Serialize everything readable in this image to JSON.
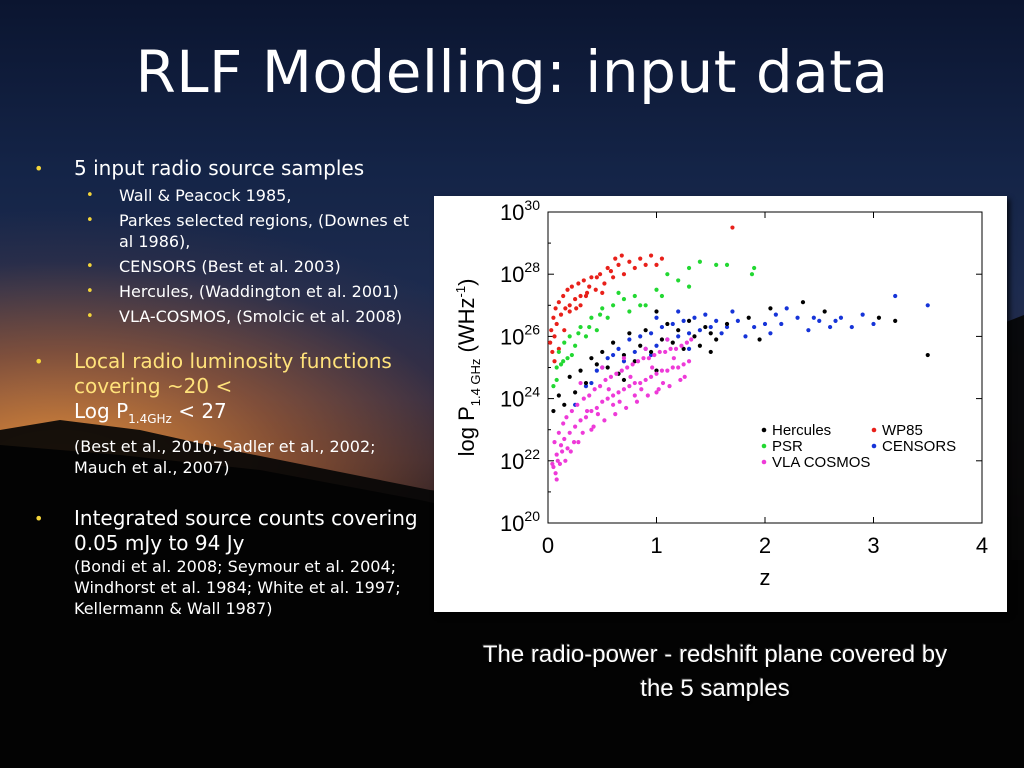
{
  "title": "RLF Modelling: input data",
  "bullets": {
    "b1": {
      "text": "5 input radio source samples",
      "subs": [
        "Wall & Peacock 1985,",
        "Parkes selected regions, (Downes et al 1986),",
        "CENSORS (Best et al. 2003)",
        "Hercules, (Waddington et al. 2001)",
        "VLA-COSMOS, (Smolcic et al. 2008)"
      ]
    },
    "b2": {
      "line1": "Local radio luminosity functions covering ~20 <",
      "logp": "Log P",
      "logp_sub": "1.4GHz",
      "logp_tail": " < 27",
      "refs": "(Best et al., 2010; Sadler et al., 2002; Mauch et al., 2007)"
    },
    "b3": {
      "line1": "Integrated source counts covering 0.05 mJy to 94 Jy",
      "refs": "(Bondi et al. 2008; Seymour et al. 2004; Windhorst et al. 1984; White et al. 1997; Kellermann & Wall 1987)"
    }
  },
  "caption": "The radio-power - redshift plane covered by the 5 samples",
  "colors": {
    "bullet_dot": "#f3d43a",
    "Hercules": "#000000",
    "WP85": "#e8201a",
    "PSR": "#22d832",
    "CENSORS": "#1634d8",
    "VLA COSMOS": "#ee3ad8"
  },
  "chart_data": {
    "type": "scatter",
    "xlabel": "z",
    "ylabel_base": "log P",
    "ylabel_sub": "1.4 GHz",
    "ylabel_unit": "(WHz",
    "ylabel_unit_sup": "-1",
    "ylabel_unit_close": ")",
    "xlim": [
      0,
      4
    ],
    "ylim": [
      20,
      30
    ],
    "y_scale": "log",
    "x_ticks": [
      {
        "v": 0,
        "label": "0"
      },
      {
        "v": 1,
        "label": "1"
      },
      {
        "v": 2,
        "label": "2"
      },
      {
        "v": 3,
        "label": "3"
      },
      {
        "v": 4,
        "label": "4"
      }
    ],
    "y_ticks": [
      {
        "v": 20,
        "base": "10",
        "exp": "20"
      },
      {
        "v": 22,
        "base": "10",
        "exp": "22"
      },
      {
        "v": 24,
        "base": "10",
        "exp": "24"
      },
      {
        "v": 26,
        "base": "10",
        "exp": "26"
      },
      {
        "v": 28,
        "base": "10",
        "exp": "28"
      },
      {
        "v": 30,
        "base": "10",
        "exp": "30"
      }
    ],
    "legend_placement": "lower-right",
    "legend": [
      {
        "name": "Hercules",
        "color": "#000000"
      },
      {
        "name": "WP85",
        "color": "#e8201a"
      },
      {
        "name": "PSR",
        "color": "#22d832"
      },
      {
        "name": "CENSORS",
        "color": "#1634d8"
      },
      {
        "name": "VLA COSMOS",
        "color": "#ee3ad8"
      }
    ],
    "series": [
      {
        "name": "WP85",
        "color": "#e8201a",
        "points": [
          [
            0.02,
            25.8
          ],
          [
            0.03,
            26.2
          ],
          [
            0.04,
            25.5
          ],
          [
            0.05,
            26.6
          ],
          [
            0.06,
            26.0
          ],
          [
            0.07,
            26.9
          ],
          [
            0.08,
            26.4
          ],
          [
            0.1,
            27.1
          ],
          [
            0.12,
            26.7
          ],
          [
            0.14,
            27.3
          ],
          [
            0.16,
            26.9
          ],
          [
            0.18,
            27.5
          ],
          [
            0.2,
            27.0
          ],
          [
            0.22,
            27.6
          ],
          [
            0.25,
            27.2
          ],
          [
            0.28,
            27.7
          ],
          [
            0.3,
            27.3
          ],
          [
            0.33,
            27.8
          ],
          [
            0.36,
            27.4
          ],
          [
            0.4,
            27.9
          ],
          [
            0.44,
            27.5
          ],
          [
            0.48,
            28.0
          ],
          [
            0.52,
            27.7
          ],
          [
            0.55,
            28.2
          ],
          [
            0.6,
            27.9
          ],
          [
            0.65,
            28.3
          ],
          [
            0.7,
            28.0
          ],
          [
            0.75,
            28.4
          ],
          [
            0.8,
            28.2
          ],
          [
            0.85,
            28.5
          ],
          [
            0.9,
            28.3
          ],
          [
            0.95,
            28.6
          ],
          [
            1.0,
            28.3
          ],
          [
            1.05,
            28.5
          ],
          [
            0.58,
            28.1
          ],
          [
            0.68,
            28.6
          ],
          [
            0.45,
            27.9
          ],
          [
            0.38,
            27.6
          ],
          [
            0.26,
            26.9
          ],
          [
            0.15,
            26.2
          ],
          [
            0.1,
            25.6
          ],
          [
            0.06,
            25.2
          ],
          [
            0.3,
            27.0
          ],
          [
            0.5,
            27.4
          ],
          [
            1.7,
            29.5
          ],
          [
            0.2,
            26.8
          ],
          [
            0.35,
            27.3
          ],
          [
            0.62,
            28.5
          ]
        ]
      },
      {
        "name": "PSR",
        "color": "#22d832",
        "points": [
          [
            0.05,
            24.4
          ],
          [
            0.08,
            25.0
          ],
          [
            0.1,
            25.5
          ],
          [
            0.12,
            25.1
          ],
          [
            0.15,
            25.8
          ],
          [
            0.18,
            25.3
          ],
          [
            0.2,
            26.0
          ],
          [
            0.25,
            25.7
          ],
          [
            0.3,
            26.3
          ],
          [
            0.35,
            26.0
          ],
          [
            0.4,
            26.6
          ],
          [
            0.45,
            26.2
          ],
          [
            0.5,
            26.9
          ],
          [
            0.55,
            26.6
          ],
          [
            0.6,
            27.0
          ],
          [
            0.7,
            27.2
          ],
          [
            0.75,
            26.8
          ],
          [
            0.8,
            27.3
          ],
          [
            0.9,
            27.0
          ],
          [
            1.0,
            27.5
          ],
          [
            1.1,
            28.0
          ],
          [
            1.2,
            27.8
          ],
          [
            1.3,
            28.2
          ],
          [
            1.4,
            28.4
          ],
          [
            1.55,
            28.3
          ],
          [
            1.65,
            28.3
          ],
          [
            1.88,
            28.0
          ],
          [
            1.9,
            28.2
          ],
          [
            1.3,
            27.6
          ],
          [
            0.65,
            27.4
          ],
          [
            0.85,
            27.0
          ],
          [
            1.05,
            27.3
          ],
          [
            0.22,
            25.4
          ],
          [
            0.28,
            26.1
          ],
          [
            0.38,
            26.3
          ],
          [
            0.48,
            26.7
          ],
          [
            0.14,
            25.2
          ],
          [
            0.08,
            24.6
          ]
        ]
      },
      {
        "name": "CENSORS",
        "color": "#1634d8",
        "points": [
          [
            0.25,
            23.8
          ],
          [
            0.35,
            24.4
          ],
          [
            0.45,
            24.9
          ],
          [
            0.55,
            25.3
          ],
          [
            0.65,
            25.6
          ],
          [
            0.7,
            25.2
          ],
          [
            0.75,
            25.9
          ],
          [
            0.8,
            25.5
          ],
          [
            0.85,
            26.0
          ],
          [
            0.9,
            25.6
          ],
          [
            0.95,
            26.1
          ],
          [
            1.0,
            25.7
          ],
          [
            1.05,
            26.3
          ],
          [
            1.1,
            25.9
          ],
          [
            1.15,
            26.4
          ],
          [
            1.2,
            26.0
          ],
          [
            1.25,
            26.5
          ],
          [
            1.3,
            26.1
          ],
          [
            1.35,
            26.6
          ],
          [
            1.4,
            26.2
          ],
          [
            1.45,
            26.7
          ],
          [
            1.5,
            26.3
          ],
          [
            1.55,
            26.5
          ],
          [
            1.6,
            26.1
          ],
          [
            1.65,
            26.3
          ],
          [
            1.75,
            26.5
          ],
          [
            1.82,
            26.0
          ],
          [
            1.9,
            26.3
          ],
          [
            2.0,
            26.4
          ],
          [
            2.1,
            26.7
          ],
          [
            2.15,
            26.4
          ],
          [
            2.3,
            26.6
          ],
          [
            2.4,
            26.2
          ],
          [
            2.5,
            26.5
          ],
          [
            2.6,
            26.3
          ],
          [
            2.7,
            26.6
          ],
          [
            2.8,
            26.3
          ],
          [
            2.9,
            26.7
          ],
          [
            3.0,
            26.4
          ],
          [
            3.5,
            27.0
          ],
          [
            1.0,
            26.6
          ],
          [
            1.2,
            26.8
          ],
          [
            0.6,
            25.4
          ],
          [
            0.5,
            25.0
          ],
          [
            2.2,
            26.9
          ],
          [
            2.65,
            26.5
          ],
          [
            3.2,
            27.3
          ],
          [
            1.7,
            26.8
          ],
          [
            0.95,
            25.4
          ],
          [
            1.3,
            25.6
          ],
          [
            0.4,
            24.5
          ],
          [
            2.05,
            26.1
          ],
          [
            2.45,
            26.6
          ]
        ]
      },
      {
        "name": "Hercules",
        "color": "#000000",
        "points": [
          [
            0.1,
            24.1
          ],
          [
            0.2,
            24.7
          ],
          [
            0.3,
            24.9
          ],
          [
            0.4,
            25.3
          ],
          [
            0.5,
            25.5
          ],
          [
            0.55,
            25.0
          ],
          [
            0.6,
            25.8
          ],
          [
            0.65,
            24.8
          ],
          [
            0.7,
            25.4
          ],
          [
            0.75,
            26.1
          ],
          [
            0.8,
            25.2
          ],
          [
            0.85,
            25.7
          ],
          [
            0.9,
            26.2
          ],
          [
            0.95,
            25.5
          ],
          [
            1.0,
            26.8
          ],
          [
            1.05,
            25.9
          ],
          [
            1.1,
            26.4
          ],
          [
            1.15,
            25.8
          ],
          [
            1.2,
            26.2
          ],
          [
            1.25,
            25.6
          ],
          [
            1.3,
            26.5
          ],
          [
            1.35,
            26.0
          ],
          [
            1.4,
            25.7
          ],
          [
            1.45,
            26.3
          ],
          [
            1.5,
            26.1
          ],
          [
            1.55,
            25.9
          ],
          [
            1.65,
            26.4
          ],
          [
            1.85,
            26.6
          ],
          [
            1.95,
            25.9
          ],
          [
            2.05,
            26.9
          ],
          [
            2.35,
            27.1
          ],
          [
            2.55,
            26.8
          ],
          [
            3.05,
            26.6
          ],
          [
            3.2,
            26.5
          ],
          [
            3.5,
            25.4
          ],
          [
            0.45,
            25.1
          ],
          [
            0.35,
            24.5
          ],
          [
            0.15,
            23.8
          ],
          [
            0.25,
            24.2
          ],
          [
            1.0,
            24.9
          ],
          [
            0.7,
            24.6
          ],
          [
            1.5,
            25.5
          ],
          [
            0.05,
            23.6
          ]
        ]
      },
      {
        "name": "VLA COSMOS",
        "color": "#ee3ad8",
        "points": [
          [
            0.05,
            21.8
          ],
          [
            0.06,
            22.6
          ],
          [
            0.08,
            22.2
          ],
          [
            0.1,
            22.9
          ],
          [
            0.12,
            22.5
          ],
          [
            0.14,
            23.2
          ],
          [
            0.15,
            22.7
          ],
          [
            0.17,
            23.4
          ],
          [
            0.2,
            22.9
          ],
          [
            0.22,
            23.6
          ],
          [
            0.25,
            23.1
          ],
          [
            0.27,
            23.8
          ],
          [
            0.3,
            23.3
          ],
          [
            0.33,
            24.0
          ],
          [
            0.35,
            23.4
          ],
          [
            0.38,
            24.1
          ],
          [
            0.4,
            23.6
          ],
          [
            0.43,
            24.3
          ],
          [
            0.45,
            23.7
          ],
          [
            0.48,
            24.4
          ],
          [
            0.5,
            23.9
          ],
          [
            0.53,
            24.6
          ],
          [
            0.55,
            24.0
          ],
          [
            0.58,
            24.7
          ],
          [
            0.6,
            24.1
          ],
          [
            0.63,
            24.8
          ],
          [
            0.65,
            24.2
          ],
          [
            0.68,
            24.9
          ],
          [
            0.7,
            24.3
          ],
          [
            0.73,
            25.0
          ],
          [
            0.75,
            24.4
          ],
          [
            0.78,
            25.1
          ],
          [
            0.8,
            24.5
          ],
          [
            0.83,
            25.2
          ],
          [
            0.85,
            24.5
          ],
          [
            0.88,
            25.3
          ],
          [
            0.9,
            24.6
          ],
          [
            0.93,
            25.3
          ],
          [
            0.95,
            24.7
          ],
          [
            0.98,
            25.4
          ],
          [
            1.0,
            24.8
          ],
          [
            1.03,
            25.5
          ],
          [
            1.05,
            24.9
          ],
          [
            1.08,
            25.5
          ],
          [
            1.1,
            24.9
          ],
          [
            1.13,
            25.6
          ],
          [
            1.15,
            25.0
          ],
          [
            1.18,
            25.6
          ],
          [
            1.2,
            25.0
          ],
          [
            1.23,
            25.7
          ],
          [
            1.25,
            25.1
          ],
          [
            1.28,
            25.8
          ],
          [
            1.3,
            25.2
          ],
          [
            1.32,
            25.9
          ],
          [
            0.07,
            21.6
          ],
          [
            0.09,
            22.0
          ],
          [
            0.11,
            21.9
          ],
          [
            0.13,
            22.3
          ],
          [
            0.18,
            22.4
          ],
          [
            0.24,
            22.6
          ],
          [
            0.32,
            22.9
          ],
          [
            0.42,
            23.1
          ],
          [
            0.52,
            23.3
          ],
          [
            0.62,
            23.5
          ],
          [
            0.72,
            23.7
          ],
          [
            0.82,
            23.9
          ],
          [
            0.92,
            24.1
          ],
          [
            1.02,
            24.3
          ],
          [
            1.12,
            24.4
          ],
          [
            1.22,
            24.6
          ],
          [
            0.3,
            24.5
          ],
          [
            0.5,
            25.0
          ],
          [
            0.7,
            25.3
          ],
          [
            0.9,
            25.6
          ],
          [
            1.1,
            25.9
          ],
          [
            0.6,
            23.8
          ],
          [
            0.8,
            24.1
          ],
          [
            1.0,
            24.2
          ],
          [
            0.4,
            23.0
          ],
          [
            0.28,
            22.6
          ],
          [
            0.46,
            23.5
          ],
          [
            0.66,
            23.9
          ],
          [
            0.86,
            24.3
          ],
          [
            1.06,
            24.5
          ],
          [
            1.26,
            24.7
          ],
          [
            0.36,
            23.6
          ],
          [
            0.56,
            24.3
          ],
          [
            0.76,
            24.7
          ],
          [
            0.96,
            25.0
          ],
          [
            1.16,
            25.3
          ],
          [
            0.16,
            22.0
          ],
          [
            0.21,
            22.3
          ],
          [
            0.08,
            21.4
          ],
          [
            0.04,
            21.9
          ]
        ]
      }
    ]
  }
}
